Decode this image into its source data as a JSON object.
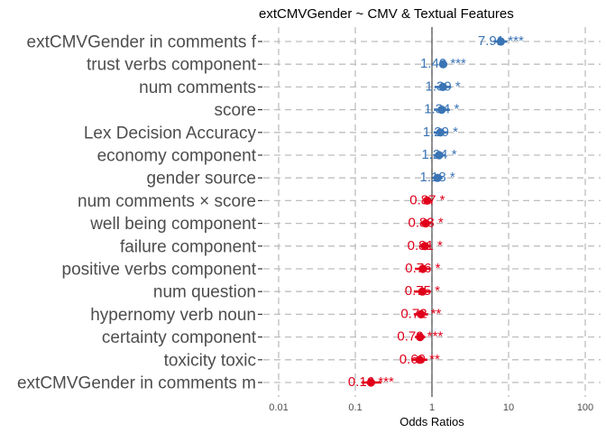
{
  "chart_data": {
    "type": "scatter",
    "title": "extCMVGender  ~  CMV & Textual Features",
    "xlabel": "Odds Ratios",
    "ylabel": "",
    "x_scale": "log10",
    "xlim": [
      0.01,
      100
    ],
    "x_ticks": [
      "0.01",
      "0.1",
      "1",
      "10",
      "100"
    ],
    "x_tick_values": [
      0.01,
      0.1,
      1,
      10,
      100
    ],
    "reference_line": 1,
    "grid": true,
    "colors": {
      "positive": "#3a74b5",
      "negative": "#e0001b"
    },
    "terms": [
      {
        "label": "extCMVGender in comments f",
        "value": 7.91,
        "label_text": "7.91 ***",
        "lo": 6.4,
        "hi": 9.6
      },
      {
        "label": "trust verbs component",
        "value": 1.4,
        "label_text": "1.40 ***",
        "lo": 1.25,
        "hi": 1.58
      },
      {
        "label": "num comments",
        "value": 1.39,
        "label_text": "1.39 *",
        "lo": 1.08,
        "hi": 1.78
      },
      {
        "label": "score",
        "value": 1.34,
        "label_text": "1.34 *",
        "lo": 1.06,
        "hi": 1.7
      },
      {
        "label": "Lex Decision Accuracy",
        "value": 1.29,
        "label_text": "1.29 *",
        "lo": 1.05,
        "hi": 1.58
      },
      {
        "label": "economy component",
        "value": 1.24,
        "label_text": "1.24 *",
        "lo": 1.04,
        "hi": 1.48
      },
      {
        "label": "gender source",
        "value": 1.18,
        "label_text": "1.18 *",
        "lo": 1.01,
        "hi": 1.38
      },
      {
        "label": "num comments × score",
        "value": 0.87,
        "label_text": "0.87 *",
        "lo": 0.77,
        "hi": 0.98
      },
      {
        "label": "well being component",
        "value": 0.83,
        "label_text": "0.83 *",
        "lo": 0.7,
        "hi": 0.98
      },
      {
        "label": "failure component",
        "value": 0.81,
        "label_text": "0.81 *",
        "lo": 0.68,
        "hi": 0.97
      },
      {
        "label": "positive verbs component",
        "value": 0.76,
        "label_text": "0.76 *",
        "lo": 0.6,
        "hi": 0.96
      },
      {
        "label": "num question",
        "value": 0.75,
        "label_text": "0.75 *",
        "lo": 0.58,
        "hi": 0.97
      },
      {
        "label": "hypernomy verb noun",
        "value": 0.72,
        "label_text": "0.72 **",
        "lo": 0.58,
        "hi": 0.89
      },
      {
        "label": "certainty component",
        "value": 0.7,
        "label_text": "0.70 ***",
        "lo": 0.6,
        "hi": 0.82
      },
      {
        "label": "toxicity toxic",
        "value": 0.69,
        "label_text": "0.69 **",
        "lo": 0.55,
        "hi": 0.87
      },
      {
        "label": "extCMVGender in comments m",
        "value": 0.16,
        "label_text": "0.16 ***",
        "lo": 0.12,
        "hi": 0.22
      }
    ]
  }
}
